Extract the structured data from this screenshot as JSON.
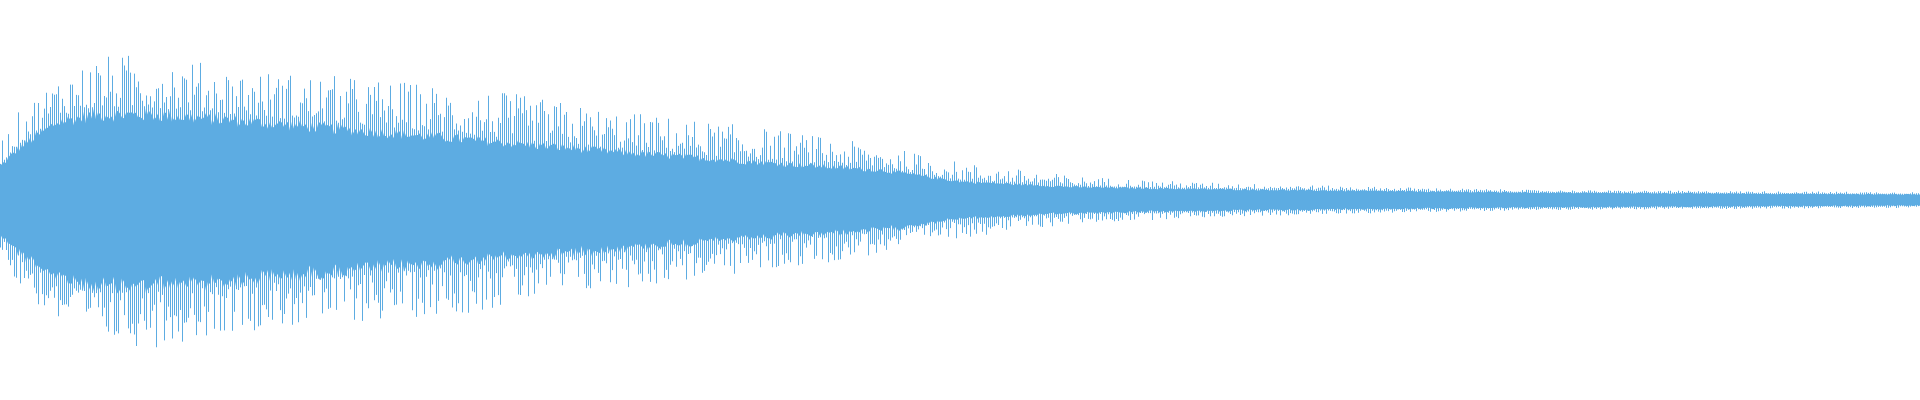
{
  "waveform": {
    "color": "#5DACE2",
    "background": "#FFFFFF",
    "envelope_positions": [
      0,
      0.01,
      0.03,
      0.05,
      0.08,
      0.12,
      0.18,
      0.25,
      0.32,
      0.4,
      0.46,
      0.5,
      0.56,
      0.62,
      0.7,
      0.8,
      0.9,
      1.0
    ],
    "body_amplitude": [
      0.18,
      0.28,
      0.42,
      0.46,
      0.46,
      0.43,
      0.38,
      0.32,
      0.26,
      0.2,
      0.16,
      0.1,
      0.07,
      0.06,
      0.05,
      0.04,
      0.035,
      0.03
    ],
    "peak_amplitude": [
      0.3,
      0.45,
      0.62,
      0.72,
      0.74,
      0.66,
      0.62,
      0.56,
      0.45,
      0.36,
      0.27,
      0.19,
      0.12,
      0.09,
      0.07,
      0.05,
      0.045,
      0.04
    ]
  }
}
